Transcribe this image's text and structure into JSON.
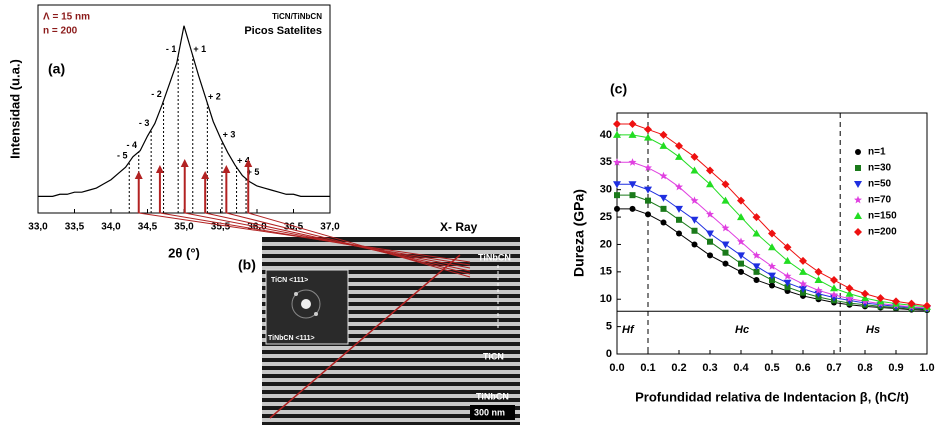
{
  "chart_data": [
    {
      "type": "line",
      "panel": "(a)",
      "annotations": [
        "Λ = 15 nm",
        "n = 200",
        "TiCN/TiNbCN",
        "Picos Satelites"
      ],
      "xlabel": "2θ (°)",
      "ylabel": "Intensidad (u.a.)",
      "color": "#000000",
      "ylim": [
        0,
        100
      ],
      "xlim": [
        33,
        37
      ],
      "xticks": [
        {
          "value": 33,
          "label": "33,0"
        },
        {
          "value": 33.5,
          "label": "33,5"
        },
        {
          "value": 34,
          "label": "34,0"
        },
        {
          "value": 34.5,
          "label": "34,5"
        },
        {
          "value": 35,
          "label": "35,0"
        },
        {
          "value": 35.5,
          "label": "35,5"
        },
        {
          "value": 36,
          "label": "36,0"
        },
        {
          "value": 36.5,
          "label": "36,5"
        },
        {
          "value": 37,
          "label": "37,0"
        }
      ],
      "x": [
        33.0,
        33.1,
        33.2,
        33.3,
        33.4,
        33.5,
        33.6,
        33.7,
        33.8,
        33.9,
        34.0,
        34.1,
        34.2,
        34.3,
        34.4,
        34.5,
        34.6,
        34.7,
        34.8,
        34.9,
        35.0,
        35.1,
        35.2,
        35.3,
        35.4,
        35.5,
        35.6,
        35.7,
        35.8,
        35.9,
        36.0,
        36.1,
        36.2,
        36.3,
        36.4,
        36.5,
        36.6,
        36.7,
        36.8,
        36.9,
        37.0
      ],
      "values": [
        8,
        8,
        8,
        9,
        9,
        10,
        10,
        11,
        12,
        14,
        16,
        19,
        22,
        27,
        30,
        37,
        43,
        52,
        62,
        72,
        90,
        78,
        66,
        55,
        44,
        36,
        29,
        23,
        18,
        15,
        13,
        12,
        11,
        10,
        9,
        9,
        8,
        8,
        8,
        8,
        8
      ],
      "satellites": [
        {
          "label": "- 5",
          "x": 34.25
        },
        {
          "label": "- 4",
          "x": 34.38
        },
        {
          "label": "- 3",
          "x": 34.55
        },
        {
          "label": "- 2",
          "x": 34.72
        },
        {
          "label": "- 1",
          "x": 34.92
        },
        {
          "label": "+ 1",
          "x": 35.12
        },
        {
          "label": "+ 2",
          "x": 35.32
        },
        {
          "label": "+ 3",
          "x": 35.52
        },
        {
          "label": "+ 4",
          "x": 35.72
        },
        {
          "label": "+ 5",
          "x": 35.85
        }
      ],
      "reflections_x": [
        34.38,
        34.67,
        35.01,
        35.29,
        35.58,
        35.88
      ],
      "reflection_color": "#b22222"
    },
    {
      "type": "scatter",
      "panel": "(c)",
      "xlabel": "Profundidad relativa de Indentacion β, (hC/t)",
      "ylabel": "Dureza (GPa)",
      "xlim": [
        0,
        1
      ],
      "ylim": [
        0,
        44
      ],
      "xticks": [
        {
          "value": 0,
          "label": "0.0"
        },
        0.1,
        0.2,
        0.3,
        0.4,
        0.5,
        0.6,
        0.7,
        0.8,
        0.9,
        {
          "value": 1,
          "label": "1.0"
        }
      ],
      "yticks": [
        0,
        5,
        10,
        15,
        20,
        25,
        30,
        35,
        40
      ],
      "vlines": [
        0.1,
        0.72
      ],
      "hline": 7.8,
      "regions": [
        "Hf",
        "Hc",
        "Hs"
      ],
      "x": [
        0,
        0.05,
        0.1,
        0.15,
        0.2,
        0.25,
        0.3,
        0.35,
        0.4,
        0.45,
        0.5,
        0.55,
        0.6,
        0.65,
        0.7,
        0.75,
        0.8,
        0.85,
        0.9,
        0.95,
        1.0
      ],
      "series": [
        {
          "name": "n=1",
          "color": "#000000",
          "marker": "circle",
          "values": [
            26.5,
            26.5,
            25.5,
            24,
            22,
            20,
            18,
            16.5,
            15,
            13.5,
            12.5,
            11.5,
            10.6,
            10,
            9.4,
            9,
            8.7,
            8.5,
            8.3,
            8.1,
            8
          ]
        },
        {
          "name": "n=30",
          "color": "#1a7a1a",
          "marker": "square",
          "values": [
            29,
            29,
            28,
            26.5,
            24.5,
            22.5,
            20.5,
            18.5,
            16.5,
            15,
            13.5,
            12.2,
            11.2,
            10.4,
            9.8,
            9.3,
            9,
            8.7,
            8.5,
            8.3,
            8.2
          ]
        },
        {
          "name": "n=50",
          "color": "#1f2fe0",
          "marker": "tri-down",
          "values": [
            31,
            31,
            30,
            28.5,
            26.5,
            24.5,
            22,
            20,
            18,
            16,
            14.3,
            13,
            11.9,
            11,
            10.3,
            9.8,
            9.3,
            9,
            8.7,
            8.5,
            8.3
          ]
        },
        {
          "name": "n=70",
          "color": "#e040e0",
          "marker": "star",
          "values": [
            35,
            35,
            34,
            32.5,
            30.5,
            28,
            25.5,
            23,
            20.5,
            18,
            16,
            14.2,
            12.8,
            11.6,
            10.8,
            10.1,
            9.6,
            9.2,
            8.9,
            8.6,
            8.4
          ]
        },
        {
          "name": "n=150",
          "color": "#22dd22",
          "marker": "tri-up",
          "values": [
            40,
            40,
            39.5,
            38,
            36,
            33.5,
            31,
            28,
            25,
            22,
            19.5,
            17,
            15,
            13.5,
            12,
            11,
            10.2,
            9.6,
            9.2,
            8.9,
            8.6
          ]
        },
        {
          "name": "n=200",
          "color": "#ee1111",
          "marker": "diamond",
          "values": [
            42,
            42,
            41,
            40,
            38,
            36,
            33.5,
            31,
            28,
            25,
            22,
            19.5,
            17,
            15,
            13.5,
            12,
            11,
            10.2,
            9.6,
            9.2,
            8.8
          ]
        }
      ]
    }
  ],
  "image_b": {
    "panel": "(b)",
    "xray": "X- Ray",
    "layers": [
      "TiNbCN",
      "TiCN",
      "TiNbCN"
    ],
    "scale": "300 nm",
    "inset": [
      "TiCN <111>",
      "TiNbCN <111>"
    ]
  }
}
